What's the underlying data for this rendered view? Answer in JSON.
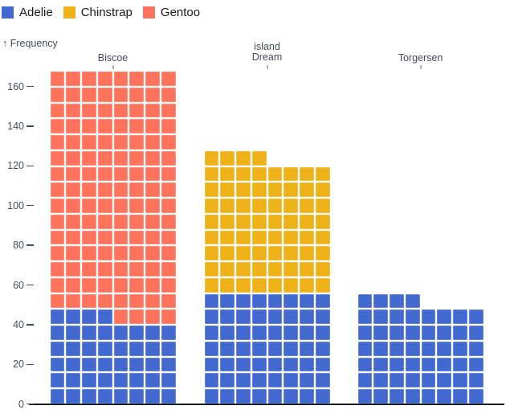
{
  "legend": {
    "items": [
      {
        "label": "Adelie",
        "color": "#4269d0"
      },
      {
        "label": "Chinstrap",
        "color": "#efb118"
      },
      {
        "label": "Gentoo",
        "color": "#ff725c"
      }
    ]
  },
  "y_axis": {
    "label": "↑ Frequency"
  },
  "colors": {
    "adelie": "#4269d0",
    "chinstrap": "#efb118",
    "gentoo": "#ff725c",
    "axis_text": "#434c5e",
    "baseline": "#171b26",
    "background": "#ffffff"
  },
  "chart_data": {
    "type": "bar",
    "subtype": "waffle",
    "title": "",
    "xlabel": "island",
    "ylabel": "Frequency",
    "categories": [
      "Biscoe",
      "Dream",
      "Torgersen"
    ],
    "series": [
      {
        "name": "Adelie",
        "color": "#4269d0",
        "values": [
          44,
          56,
          52
        ]
      },
      {
        "name": "Chinstrap",
        "color": "#efb118",
        "values": [
          0,
          68,
          0
        ]
      },
      {
        "name": "Gentoo",
        "color": "#ff725c",
        "values": [
          124,
          0,
          0
        ]
      }
    ],
    "totals": [
      168,
      124,
      52
    ],
    "ylim": [
      0,
      168
    ],
    "y_ticks": [
      0,
      20,
      40,
      60,
      80,
      100,
      120,
      140,
      160
    ],
    "units_per_row": 8,
    "unit": 1,
    "grid": false,
    "legend_position": "top-left"
  }
}
